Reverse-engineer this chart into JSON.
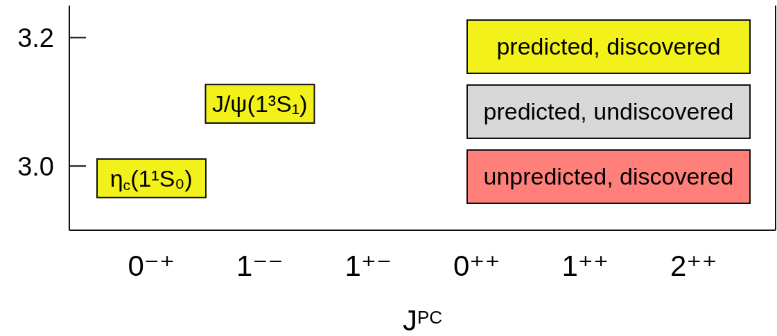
{
  "chart_data": {
    "type": "bar",
    "categories": [
      "0⁻⁺",
      "1⁻⁻",
      "1⁺⁻",
      "0⁺⁺",
      "1⁺⁺",
      "2⁺⁺"
    ],
    "series": [
      {
        "name": "predicted, discovered",
        "color": "#f2f21a",
        "base": [
          2.951,
          3.067,
          null,
          null,
          null,
          null
        ],
        "values": [
          0.06,
          0.06,
          null,
          null,
          null,
          null
        ]
      },
      {
        "name": "predicted, undiscovered",
        "color": "#d8d8d8",
        "values": [
          null,
          null,
          null,
          null,
          null,
          null
        ]
      },
      {
        "name": "unpredicted, discovered",
        "color": "#ff807a",
        "values": [
          null,
          null,
          null,
          null,
          null,
          null
        ]
      }
    ],
    "annotations": [
      "η$_{c}$(1¹S₀)",
      "J/ψ(1³S₁)"
    ],
    "xlabel": "J$^{PC}$",
    "ylim": [
      2.9,
      3.25
    ],
    "yticks": [
      {
        "value": 3,
        "label": "3.0"
      },
      {
        "value": 3.2,
        "label": "3.2"
      }
    ],
    "legend": "top right"
  }
}
